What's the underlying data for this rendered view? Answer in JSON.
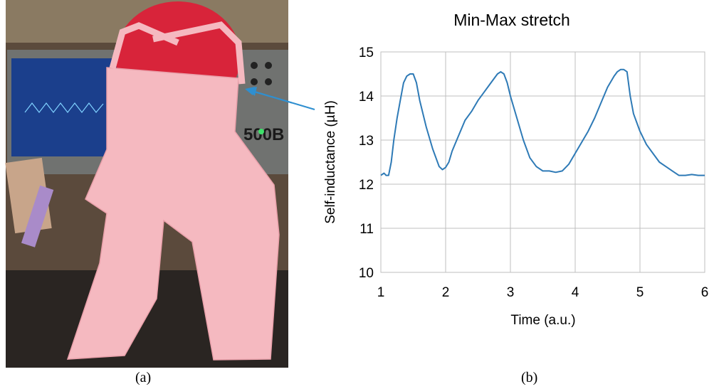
{
  "captions": {
    "a": "(a)",
    "b": "(b)"
  },
  "photo": {
    "subject": "pink knitted pants on a mannequin with red ball, oscilloscope in background",
    "scope_model_text": "500B",
    "colors": {
      "garment": "#f5b9c0",
      "ball": "#d8243a",
      "scope_body": "#6f7170",
      "scope_screen": "#1b3f8c",
      "trace": "#7fd1ff",
      "arrow": "#2f8fd0"
    }
  },
  "chart_data": {
    "type": "line",
    "title": "Min-Max stretch",
    "xlabel": "Time (a.u.)",
    "ylabel": "Self-inductance (µH)",
    "xlim": [
      1,
      6
    ],
    "ylim": [
      10,
      15
    ],
    "xticks": [
      1,
      2,
      3,
      4,
      5,
      6
    ],
    "yticks": [
      10,
      11,
      12,
      13,
      14,
      15
    ],
    "grid": true,
    "series": [
      {
        "color": "#2e7ab6",
        "x": [
          1.0,
          1.05,
          1.08,
          1.12,
          1.16,
          1.2,
          1.25,
          1.3,
          1.35,
          1.4,
          1.45,
          1.5,
          1.55,
          1.6,
          1.7,
          1.8,
          1.9,
          1.95,
          2.0,
          2.05,
          2.1,
          2.2,
          2.3,
          2.4,
          2.5,
          2.6,
          2.7,
          2.8,
          2.85,
          2.9,
          2.95,
          3.0,
          3.1,
          3.2,
          3.3,
          3.4,
          3.5,
          3.6,
          3.7,
          3.8,
          3.9,
          4.0,
          4.1,
          4.2,
          4.3,
          4.4,
          4.5,
          4.6,
          4.65,
          4.7,
          4.75,
          4.8,
          4.85,
          4.9,
          5.0,
          5.1,
          5.2,
          5.3,
          5.4,
          5.5,
          5.6,
          5.7,
          5.8,
          5.9,
          6.0
        ],
        "y": [
          12.2,
          12.25,
          12.2,
          12.2,
          12.5,
          13.0,
          13.5,
          13.9,
          14.3,
          14.45,
          14.5,
          14.5,
          14.3,
          13.9,
          13.3,
          12.8,
          12.4,
          12.33,
          12.38,
          12.5,
          12.75,
          13.1,
          13.45,
          13.65,
          13.9,
          14.1,
          14.3,
          14.5,
          14.55,
          14.5,
          14.3,
          14.0,
          13.5,
          13.0,
          12.6,
          12.4,
          12.3,
          12.3,
          12.27,
          12.3,
          12.45,
          12.7,
          12.95,
          13.2,
          13.5,
          13.85,
          14.2,
          14.45,
          14.55,
          14.6,
          14.6,
          14.55,
          14.0,
          13.6,
          13.2,
          12.9,
          12.7,
          12.5,
          12.4,
          12.3,
          12.2,
          12.2,
          12.22,
          12.2,
          12.2
        ]
      }
    ]
  }
}
